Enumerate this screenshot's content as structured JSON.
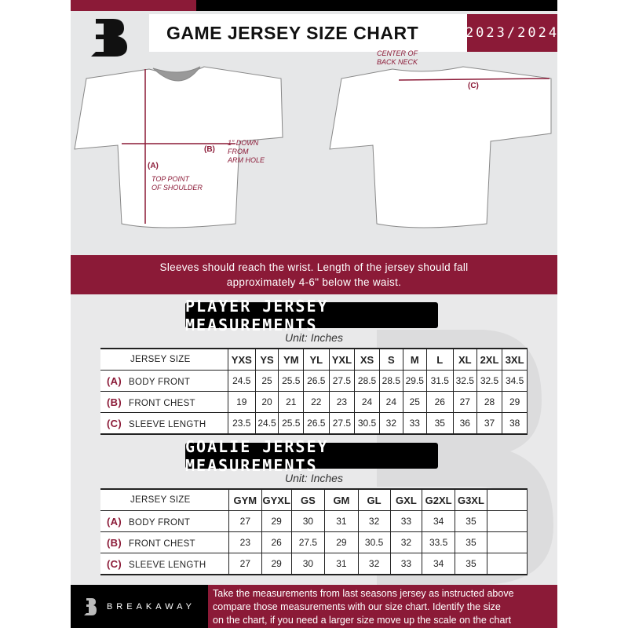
{
  "header": {
    "title": "GAME JERSEY SIZE CHART",
    "season": "2023/2024"
  },
  "diagram": {
    "a_label": "(A)",
    "a_note_1": "TOP POINT",
    "a_note_2": "OF SHOULDER",
    "b_label": "(B)",
    "b_note_1": "1\" DOWN",
    "b_note_2": "FROM",
    "b_note_3": "ARM HOLE",
    "c_label": "(C)",
    "c_note_1": "CENTER OF",
    "c_note_2": "BACK NECK"
  },
  "banner": {
    "line1": "Sleeves should reach the wrist. Length of the jersey should fall",
    "line2": "approximately 4-6\" below the waist."
  },
  "player": {
    "title": "PLAYER JERSEY MEASUREMENTS",
    "unit": "Unit: Inches",
    "header_label": "JERSEY SIZE",
    "sizes": [
      "YXS",
      "YS",
      "YM",
      "YL",
      "YXL",
      "XS",
      "S",
      "M",
      "L",
      "XL",
      "2XL",
      "3XL"
    ],
    "rows": [
      {
        "letter": "(A)",
        "label": "BODY FRONT",
        "values": [
          "24.5",
          "25",
          "25.5",
          "26.5",
          "27.5",
          "28.5",
          "28.5",
          "29.5",
          "31.5",
          "32.5",
          "32.5",
          "34.5"
        ]
      },
      {
        "letter": "(B)",
        "label": "FRONT CHEST",
        "values": [
          "19",
          "20",
          "21",
          "22",
          "23",
          "24",
          "24",
          "25",
          "26",
          "27",
          "28",
          "29"
        ]
      },
      {
        "letter": "(C)",
        "label": "SLEEVE LENGTH",
        "values": [
          "23.5",
          "24.5",
          "25.5",
          "26.5",
          "27.5",
          "30.5",
          "32",
          "33",
          "35",
          "36",
          "37",
          "38"
        ]
      }
    ]
  },
  "goalie": {
    "title": "GOALIE JERSEY MEASUREMENTS",
    "unit": "Unit: Inches",
    "header_label": "JERSEY SIZE",
    "sizes": [
      "GYM",
      "GYXL",
      "GS",
      "GM",
      "GL",
      "GXL",
      "G2XL",
      "G3XL",
      ""
    ],
    "rows": [
      {
        "letter": "(A)",
        "label": "BODY FRONT",
        "values": [
          "27",
          "29",
          "30",
          "31",
          "32",
          "33",
          "34",
          "35",
          ""
        ]
      },
      {
        "letter": "(B)",
        "label": "FRONT CHEST",
        "values": [
          "23",
          "26",
          "27.5",
          "29",
          "30.5",
          "32",
          "33.5",
          "35",
          ""
        ]
      },
      {
        "letter": "(C)",
        "label": "SLEEVE LENGTH",
        "values": [
          "27",
          "29",
          "30",
          "31",
          "32",
          "33",
          "34",
          "35",
          ""
        ]
      }
    ]
  },
  "footer": {
    "brand": "BREAKAWAY",
    "text_1": "Take the measurements from last seasons jersey as instructed above",
    "text_2": "compare those measurements  with our size chart. Identify the size",
    "text_3": "on the chart, if you need a larger size move up the scale on the chart"
  },
  "colors": {
    "accent": "#8b1a37",
    "dark": "#000000",
    "background": "#e6e7e8"
  }
}
